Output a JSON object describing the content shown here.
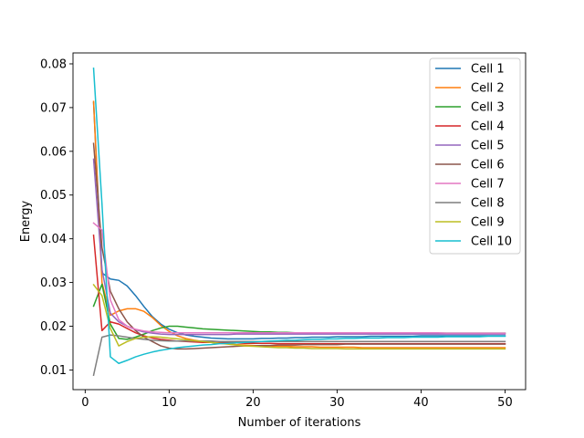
{
  "chart_data": {
    "type": "line",
    "title": "",
    "xlabel": "Number of iterations",
    "ylabel": "Energy",
    "xlim": [
      -1.45,
      52.45
    ],
    "ylim": [
      0.0055,
      0.0825
    ],
    "xticks": [
      0,
      10,
      20,
      30,
      40,
      50
    ],
    "yticks": [
      0.01,
      0.02,
      0.03,
      0.04,
      0.05,
      0.06,
      0.07,
      0.08
    ],
    "xtick_labels": [
      "0",
      "10",
      "20",
      "30",
      "40",
      "50"
    ],
    "ytick_labels": [
      "0.01",
      "0.02",
      "0.03",
      "0.04",
      "0.05",
      "0.06",
      "0.07",
      "0.08"
    ],
    "grid": false,
    "legend_position": "top-right",
    "x": [
      1,
      2,
      3,
      4,
      5,
      6,
      7,
      8,
      9,
      10,
      11,
      12,
      13,
      14,
      15,
      16,
      17,
      18,
      19,
      20,
      21,
      22,
      23,
      24,
      25,
      26,
      27,
      28,
      29,
      30,
      31,
      32,
      33,
      34,
      35,
      36,
      37,
      38,
      39,
      40,
      41,
      42,
      43,
      44,
      45,
      46,
      47,
      48,
      49,
      50
    ],
    "series": [
      {
        "name": "Cell 1",
        "color": "#1f77b4",
        "values": [
          0.0712,
          0.0322,
          0.0308,
          0.0305,
          0.0292,
          0.027,
          0.0245,
          0.0222,
          0.0205,
          0.0193,
          0.0185,
          0.018,
          0.0177,
          0.0175,
          0.0173,
          0.0172,
          0.0171,
          0.0171,
          0.0171,
          0.0171,
          0.0172,
          0.0172,
          0.0173,
          0.0173,
          0.0174,
          0.0174,
          0.0175,
          0.0175,
          0.0175,
          0.0176,
          0.0176,
          0.0176,
          0.0176,
          0.0177,
          0.0177,
          0.0177,
          0.0177,
          0.0177,
          0.0177,
          0.0178,
          0.0178,
          0.0178,
          0.0178,
          0.0178,
          0.0178,
          0.0178,
          0.0178,
          0.0178,
          0.0178,
          0.0178
        ]
      },
      {
        "name": "Cell 2",
        "color": "#ff7f0e",
        "values": [
          0.0714,
          0.03,
          0.0225,
          0.0235,
          0.024,
          0.024,
          0.0234,
          0.022,
          0.0202,
          0.0188,
          0.0178,
          0.0172,
          0.0168,
          0.0165,
          0.0163,
          0.0161,
          0.016,
          0.0158,
          0.0157,
          0.0156,
          0.0155,
          0.0155,
          0.0154,
          0.0154,
          0.0153,
          0.0153,
          0.0153,
          0.0152,
          0.0152,
          0.0152,
          0.0152,
          0.0152,
          0.0151,
          0.0151,
          0.0151,
          0.0151,
          0.0151,
          0.0151,
          0.0151,
          0.0151,
          0.0151,
          0.0151,
          0.0151,
          0.0151,
          0.0151,
          0.0151,
          0.0151,
          0.0151,
          0.0151,
          0.0151
        ]
      },
      {
        "name": "Cell 3",
        "color": "#2ca02c",
        "values": [
          0.0246,
          0.0296,
          0.0205,
          0.0172,
          0.017,
          0.0175,
          0.0182,
          0.019,
          0.0196,
          0.02,
          0.02,
          0.0198,
          0.0196,
          0.0194,
          0.0193,
          0.0192,
          0.0191,
          0.019,
          0.0189,
          0.0188,
          0.0187,
          0.0187,
          0.0186,
          0.0186,
          0.0185,
          0.0185,
          0.0185,
          0.0185,
          0.0185,
          0.0184,
          0.0184,
          0.0184,
          0.0184,
          0.0184,
          0.0184,
          0.0184,
          0.0184,
          0.0184,
          0.0184,
          0.0184,
          0.0184,
          0.0184,
          0.0184,
          0.0184,
          0.0184,
          0.0184,
          0.0184,
          0.0184,
          0.0184,
          0.0184
        ]
      },
      {
        "name": "Cell 4",
        "color": "#d62728",
        "values": [
          0.0408,
          0.019,
          0.021,
          0.0205,
          0.0195,
          0.0185,
          0.0178,
          0.0173,
          0.017,
          0.0168,
          0.0166,
          0.0165,
          0.0164,
          0.0163,
          0.0163,
          0.0162,
          0.0162,
          0.0162,
          0.0161,
          0.0161,
          0.0161,
          0.0161,
          0.016,
          0.016,
          0.016,
          0.016,
          0.016,
          0.016,
          0.016,
          0.016,
          0.016,
          0.016,
          0.016,
          0.016,
          0.016,
          0.016,
          0.016,
          0.016,
          0.016,
          0.016,
          0.016,
          0.016,
          0.016,
          0.016,
          0.016,
          0.016,
          0.016,
          0.016,
          0.016,
          0.016
        ]
      },
      {
        "name": "Cell 5",
        "color": "#9467bd",
        "values": [
          0.0582,
          0.033,
          0.023,
          0.021,
          0.02,
          0.0192,
          0.0187,
          0.0184,
          0.0182,
          0.0181,
          0.0181,
          0.0181,
          0.0181,
          0.0181,
          0.0181,
          0.0181,
          0.0181,
          0.0182,
          0.0182,
          0.0182,
          0.0182,
          0.0182,
          0.0182,
          0.0182,
          0.0182,
          0.0182,
          0.0182,
          0.0182,
          0.0182,
          0.0182,
          0.0182,
          0.0182,
          0.0182,
          0.0182,
          0.0182,
          0.0182,
          0.0182,
          0.0182,
          0.0182,
          0.0182,
          0.0182,
          0.0182,
          0.0182,
          0.0182,
          0.0182,
          0.0182,
          0.0182,
          0.0182,
          0.0182,
          0.0182
        ]
      },
      {
        "name": "Cell 6",
        "color": "#8c564b",
        "values": [
          0.0618,
          0.038,
          0.028,
          0.024,
          0.021,
          0.019,
          0.0175,
          0.0165,
          0.0155,
          0.015,
          0.0148,
          0.0148,
          0.0149,
          0.015,
          0.0151,
          0.0152,
          0.0153,
          0.0154,
          0.0155,
          0.0155,
          0.0156,
          0.0156,
          0.0157,
          0.0157,
          0.0157,
          0.0158,
          0.0158,
          0.0158,
          0.0158,
          0.0158,
          0.0159,
          0.0159,
          0.0159,
          0.0159,
          0.0159,
          0.0159,
          0.0159,
          0.0159,
          0.0159,
          0.0159,
          0.0159,
          0.0159,
          0.0159,
          0.0159,
          0.0159,
          0.0159,
          0.0159,
          0.0159,
          0.0159,
          0.0159
        ]
      },
      {
        "name": "Cell 7",
        "color": "#e377c2",
        "values": [
          0.0436,
          0.042,
          0.026,
          0.0215,
          0.02,
          0.0193,
          0.0189,
          0.0187,
          0.0186,
          0.0185,
          0.0185,
          0.0185,
          0.0185,
          0.0185,
          0.0185,
          0.0185,
          0.0185,
          0.0185,
          0.0185,
          0.0185,
          0.0185,
          0.0185,
          0.0185,
          0.0185,
          0.0185,
          0.0185,
          0.0185,
          0.0185,
          0.0185,
          0.0185,
          0.0185,
          0.0185,
          0.0185,
          0.0185,
          0.0185,
          0.0185,
          0.0185,
          0.0185,
          0.0185,
          0.0185,
          0.0185,
          0.0185,
          0.0184,
          0.0184,
          0.0184,
          0.0184,
          0.0184,
          0.0184,
          0.0184,
          0.0184
        ]
      },
      {
        "name": "Cell 8",
        "color": "#7f7f7f",
        "values": [
          0.0088,
          0.0175,
          0.018,
          0.0178,
          0.0175,
          0.0172,
          0.017,
          0.0168,
          0.0167,
          0.0166,
          0.0166,
          0.0166,
          0.0166,
          0.0166,
          0.0166,
          0.0165,
          0.0165,
          0.0165,
          0.0165,
          0.0165,
          0.0165,
          0.0165,
          0.0165,
          0.0165,
          0.0165,
          0.0165,
          0.0165,
          0.0165,
          0.0165,
          0.0165,
          0.0165,
          0.0165,
          0.0165,
          0.0165,
          0.0165,
          0.0165,
          0.0165,
          0.0165,
          0.0165,
          0.0165,
          0.0165,
          0.0165,
          0.0165,
          0.0165,
          0.0165,
          0.0165,
          0.0165,
          0.0165,
          0.0165,
          0.0165
        ]
      },
      {
        "name": "Cell 9",
        "color": "#bcbd22",
        "values": [
          0.0295,
          0.027,
          0.0195,
          0.0155,
          0.0165,
          0.0172,
          0.0175,
          0.0176,
          0.0175,
          0.0173,
          0.0171,
          0.0169,
          0.0167,
          0.0165,
          0.0163,
          0.0161,
          0.0159,
          0.0157,
          0.0155,
          0.0154,
          0.0153,
          0.0152,
          0.0151,
          0.0151,
          0.015,
          0.015,
          0.0149,
          0.0149,
          0.0149,
          0.0149,
          0.0148,
          0.0148,
          0.0148,
          0.0148,
          0.0148,
          0.0148,
          0.0148,
          0.0148,
          0.0148,
          0.0148,
          0.0148,
          0.0148,
          0.0148,
          0.0148,
          0.0148,
          0.0148,
          0.0148,
          0.0148,
          0.0148,
          0.0148
        ]
      },
      {
        "name": "Cell 10",
        "color": "#17becf",
        "values": [
          0.079,
          0.048,
          0.013,
          0.0115,
          0.0122,
          0.013,
          0.0136,
          0.0141,
          0.0145,
          0.0148,
          0.0151,
          0.0153,
          0.0155,
          0.0157,
          0.0158,
          0.016,
          0.0161,
          0.0162,
          0.0163,
          0.0164,
          0.0165,
          0.0166,
          0.0167,
          0.0168,
          0.0168,
          0.0169,
          0.017,
          0.017,
          0.0171,
          0.0171,
          0.0172,
          0.0172,
          0.0173,
          0.0173,
          0.0173,
          0.0174,
          0.0174,
          0.0174,
          0.0175,
          0.0175,
          0.0175,
          0.0175,
          0.0176,
          0.0176,
          0.0176,
          0.0176,
          0.0176,
          0.0177,
          0.0177,
          0.0177
        ]
      }
    ]
  }
}
